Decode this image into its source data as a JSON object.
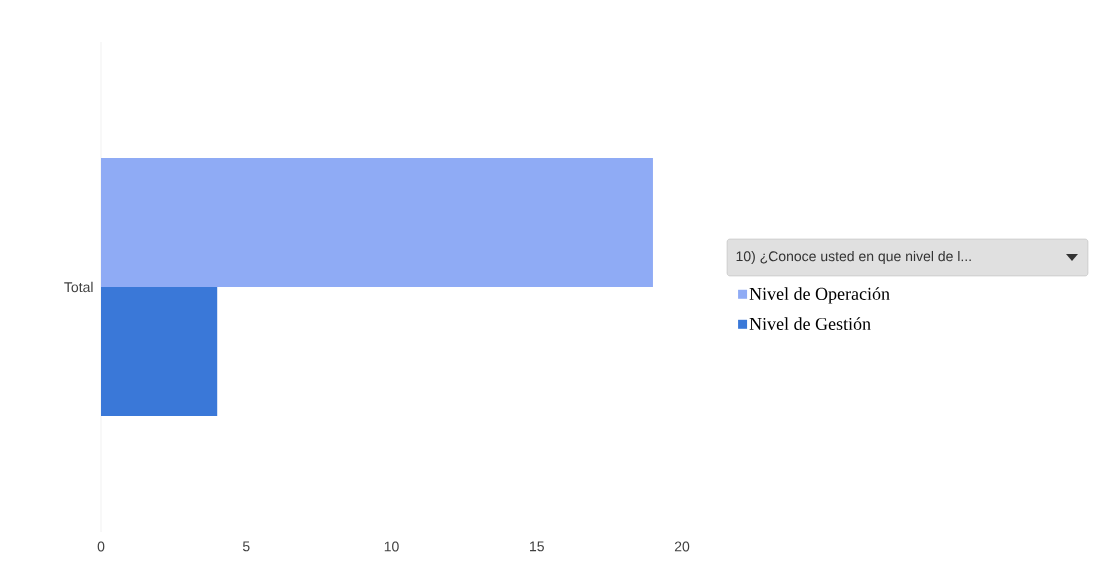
{
  "chart_data": {
    "type": "bar",
    "orientation": "horizontal",
    "categories": [
      "Total"
    ],
    "series": [
      {
        "name": "Nivel de Operación",
        "color": "#8fabf5",
        "values": [
          19
        ]
      },
      {
        "name": "Nivel de Gestión",
        "color": "#3a78d8",
        "values": [
          4
        ]
      }
    ],
    "legend_title": "10) ¿Conoce usted en que nivel de l...",
    "legend": "right",
    "xlim": [
      0,
      20
    ],
    "xticks": [
      0,
      5,
      10,
      15,
      20
    ],
    "grid": false
  }
}
